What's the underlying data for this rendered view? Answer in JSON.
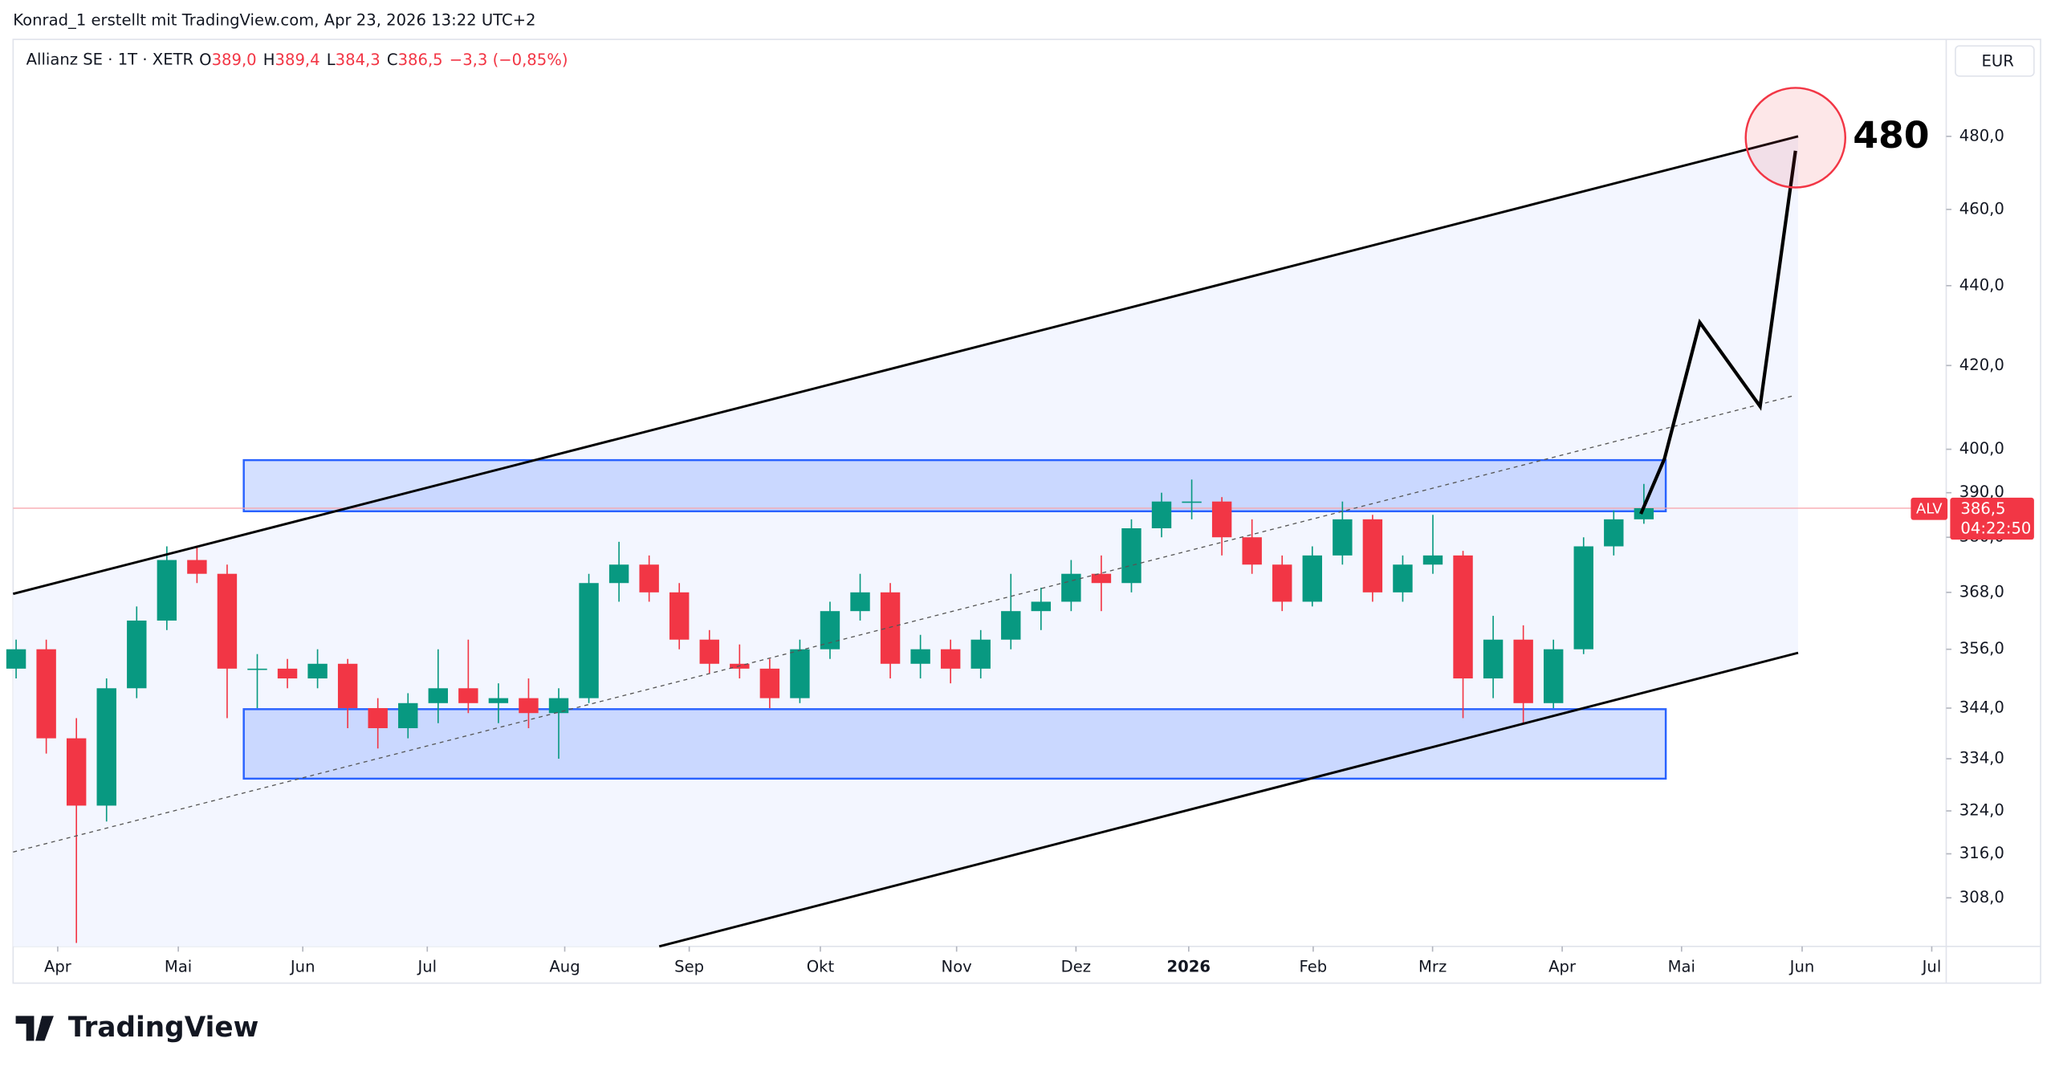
{
  "header": {
    "attribution": "Konrad_1 erstellt mit TradingView.com, Apr 23, 2026 13:22 UTC+2"
  },
  "footer": {
    "brand": "TradingView"
  },
  "chart_data": {
    "type": "candlestick",
    "title": "Allianz SE · 1T · XETR",
    "ohlc_legend": [
      {
        "label": "O",
        "value": "389,0"
      },
      {
        "label": "H",
        "value": "389,4"
      },
      {
        "label": "L",
        "value": "384,3"
      },
      {
        "label": "C",
        "value": "386,5"
      }
    ],
    "change": "−3,3 (−0,85%)",
    "currency": "EUR",
    "annotations": [
      "480"
    ],
    "up_color": "#089981",
    "down_color": "#f23645",
    "log_scale": true,
    "x": [
      0,
      1,
      2,
      3,
      4,
      5,
      6,
      7,
      8,
      9,
      10,
      11,
      12,
      13,
      14,
      15,
      16,
      17,
      18,
      19,
      20,
      21,
      22,
      23,
      24,
      25,
      26,
      27,
      28,
      29,
      30,
      31,
      32,
      33,
      34,
      35,
      36,
      37,
      38,
      39,
      40,
      41,
      42,
      43,
      44,
      45,
      46,
      47,
      48,
      49,
      50,
      51,
      52,
      53,
      54
    ],
    "open": [
      352,
      356,
      338,
      325,
      348,
      362,
      375,
      372,
      352,
      352,
      350,
      353,
      344,
      340,
      345,
      348,
      345,
      346,
      343,
      346,
      370,
      374,
      368,
      358,
      353,
      352,
      346,
      356,
      364,
      368,
      353,
      356,
      352,
      358,
      364,
      366,
      372,
      370,
      382,
      388,
      388,
      380,
      374,
      366,
      376,
      384,
      368,
      374,
      376,
      350,
      358,
      345,
      356,
      378,
      384
    ],
    "high": [
      358,
      358,
      342,
      350,
      365,
      378,
      378,
      374,
      355,
      354,
      356,
      354,
      346,
      347,
      356,
      358,
      349,
      350,
      348,
      372,
      379,
      376,
      370,
      360,
      357,
      354,
      358,
      366,
      372,
      370,
      359,
      358,
      360,
      372,
      369,
      375,
      376,
      384,
      390,
      393,
      389,
      384,
      376,
      378,
      388,
      385,
      376,
      385,
      377,
      363,
      361,
      358,
      380,
      386,
      392
    ],
    "low": [
      350,
      335,
      300,
      322,
      346,
      360,
      370,
      342,
      344,
      348,
      348,
      340,
      336,
      338,
      341,
      343,
      341,
      340,
      334,
      345,
      366,
      366,
      356,
      351,
      350,
      344,
      345,
      354,
      362,
      350,
      350,
      349,
      350,
      356,
      360,
      364,
      364,
      368,
      380,
      384,
      376,
      372,
      364,
      365,
      374,
      366,
      366,
      372,
      342,
      346,
      341,
      344,
      355,
      376,
      383
    ],
    "close": [
      356,
      338,
      325,
      348,
      362,
      375,
      372,
      352,
      352,
      350,
      353,
      344,
      340,
      345,
      348,
      345,
      346,
      343,
      346,
      370,
      374,
      368,
      358,
      353,
      352,
      346,
      356,
      364,
      368,
      353,
      356,
      352,
      358,
      364,
      366,
      372,
      370,
      382,
      388,
      388,
      380,
      374,
      366,
      376,
      384,
      368,
      374,
      376,
      350,
      358,
      345,
      356,
      378,
      384,
      386.5
    ],
    "xlim": [
      -0.1,
      64.03
    ],
    "xticks": [
      {
        "value": 1.38,
        "label": "Apr"
      },
      {
        "value": 5.38,
        "label": "Mai"
      },
      {
        "value": 9.51,
        "label": "Jun"
      },
      {
        "value": 13.64,
        "label": "Jul"
      },
      {
        "value": 18.2,
        "label": "Aug"
      },
      {
        "value": 22.33,
        "label": "Sep"
      },
      {
        "value": 26.68,
        "label": "Okt"
      },
      {
        "value": 31.2,
        "label": "Nov"
      },
      {
        "value": 35.16,
        "label": "Dez"
      },
      {
        "value": 38.9,
        "label": "2026",
        "bold": true
      },
      {
        "value": 43.03,
        "label": "Feb"
      },
      {
        "value": 46.99,
        "label": "Mrz"
      },
      {
        "value": 51.29,
        "label": "Apr"
      },
      {
        "value": 55.25,
        "label": "Mai"
      },
      {
        "value": 59.25,
        "label": "Jun"
      },
      {
        "value": 63.55,
        "label": "Jul"
      }
    ],
    "ylim": [
      299.4,
      507.9
    ],
    "yticks": [
      {
        "value": 480,
        "label": "480,0"
      },
      {
        "value": 460,
        "label": "460,0"
      },
      {
        "value": 440,
        "label": "440,0"
      },
      {
        "value": 420,
        "label": "420,0"
      },
      {
        "value": 400,
        "label": "400,0"
      },
      {
        "value": 390,
        "label": "390,0"
      },
      {
        "value": 380,
        "label": "380,0"
      },
      {
        "value": 368,
        "label": "368,0"
      },
      {
        "value": 356,
        "label": "356,0"
      },
      {
        "value": 344,
        "label": "344,0"
      },
      {
        "value": 334,
        "label": "334,0"
      },
      {
        "value": 324,
        "label": "324,0"
      },
      {
        "value": 316,
        "label": "316,0"
      },
      {
        "value": 308,
        "label": "308,0"
      }
    ],
    "last_price": {
      "symbol": "ALV",
      "value": 386.5,
      "label": "386,5",
      "countdown": "04:22:50"
    }
  }
}
